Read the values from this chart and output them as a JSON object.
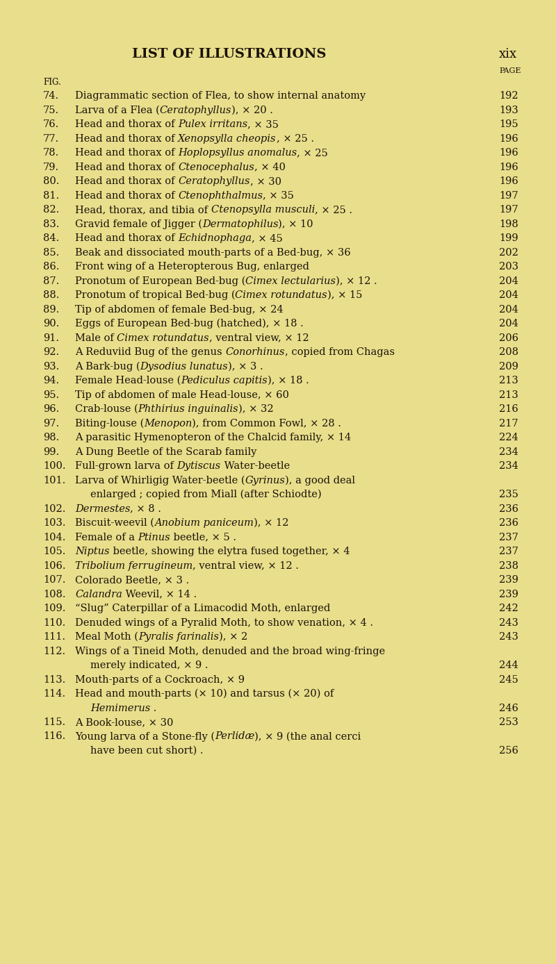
{
  "bg": "#e8de8c",
  "text_color": "#1a1208",
  "title": "LIST OF ILLUSTRATIONS",
  "page_label": "xix",
  "entries": [
    {
      "num": "74.",
      "segments": [
        [
          "n",
          "Diagrammatic section of Flea, to show internal anatomy"
        ]
      ],
      "page": "192",
      "indent": 0
    },
    {
      "num": "75.",
      "segments": [
        [
          "n",
          "Larva of a Flea ("
        ],
        [
          "i",
          "Ceratophyllus"
        ],
        [
          "n",
          "), × 20 ."
        ]
      ],
      "page": "193",
      "indent": 0
    },
    {
      "num": "76.",
      "segments": [
        [
          "n",
          "Head and thorax of "
        ],
        [
          "i",
          "Pulex irritans"
        ],
        [
          "n",
          ", × 35"
        ]
      ],
      "page": "195",
      "indent": 0
    },
    {
      "num": "77.",
      "segments": [
        [
          "n",
          "Head and thorax of "
        ],
        [
          "i",
          "Xenopsylla cheopis"
        ],
        [
          "n",
          ", × 25 ."
        ]
      ],
      "page": "196",
      "indent": 0
    },
    {
      "num": "78.",
      "segments": [
        [
          "n",
          "Head and thorax of "
        ],
        [
          "i",
          "Hoplopsyllus anomalus"
        ],
        [
          "n",
          ", × 25"
        ]
      ],
      "page": "196",
      "indent": 0
    },
    {
      "num": "79.",
      "segments": [
        [
          "n",
          "Head and thorax of "
        ],
        [
          "i",
          "Ctenocephalus"
        ],
        [
          "n",
          ", × 40"
        ]
      ],
      "page": "196",
      "indent": 0
    },
    {
      "num": "80.",
      "segments": [
        [
          "n",
          "Head and thorax of "
        ],
        [
          "i",
          "Ceratophyllus"
        ],
        [
          "n",
          ", × 30"
        ]
      ],
      "page": "196",
      "indent": 0
    },
    {
      "num": "81.",
      "segments": [
        [
          "n",
          "Head and thorax of "
        ],
        [
          "i",
          "Ctenophthalmus"
        ],
        [
          "n",
          ", × 35"
        ]
      ],
      "page": "197",
      "indent": 0
    },
    {
      "num": "82.",
      "segments": [
        [
          "n",
          "Head, thorax, and tibia of "
        ],
        [
          "i",
          "Ctenopsylla musculi"
        ],
        [
          "n",
          ", × 25 ."
        ]
      ],
      "page": "197",
      "indent": 0
    },
    {
      "num": "83.",
      "segments": [
        [
          "n",
          "Gravid female of Jigger ("
        ],
        [
          "i",
          "Dermatophilus"
        ],
        [
          "n",
          "), × 10"
        ]
      ],
      "page": "198",
      "indent": 0
    },
    {
      "num": "84.",
      "segments": [
        [
          "n",
          "Head and thorax of "
        ],
        [
          "i",
          "Echidnophaga"
        ],
        [
          "n",
          ", × 45"
        ]
      ],
      "page": "199",
      "indent": 0
    },
    {
      "num": "85.",
      "segments": [
        [
          "n",
          "Beak and dissociated mouth-parts of a Bed-bug, × 36"
        ]
      ],
      "page": "202",
      "indent": 0
    },
    {
      "num": "86.",
      "segments": [
        [
          "n",
          "Front wing of a Heteropterous Bug, enlarged"
        ]
      ],
      "page": "203",
      "indent": 0
    },
    {
      "num": "87.",
      "segments": [
        [
          "n",
          "Pronotum of European Bed-bug ("
        ],
        [
          "i",
          "Cimex lectularius"
        ],
        [
          "n",
          "), × 12 ."
        ]
      ],
      "page": "204",
      "indent": 0
    },
    {
      "num": "88.",
      "segments": [
        [
          "n",
          "Pronotum of tropical Bed-bug ("
        ],
        [
          "i",
          "Cimex rotundatus"
        ],
        [
          "n",
          "), × 15"
        ]
      ],
      "page": "204",
      "indent": 0
    },
    {
      "num": "89.",
      "segments": [
        [
          "n",
          "Tip of abdomen of female Bed-bug, × 24"
        ]
      ],
      "page": "204",
      "indent": 0
    },
    {
      "num": "90.",
      "segments": [
        [
          "n",
          "Eggs of European Bed-bug (hatched), × 18 ."
        ]
      ],
      "page": "204",
      "indent": 0
    },
    {
      "num": "91.",
      "segments": [
        [
          "n",
          "Male of "
        ],
        [
          "i",
          "Cimex rotundatus"
        ],
        [
          "n",
          ", ventral view, × 12"
        ]
      ],
      "page": "206",
      "indent": 0
    },
    {
      "num": "92.",
      "segments": [
        [
          "n",
          "A Reduviid Bug of the genus "
        ],
        [
          "i",
          "Conorhinus"
        ],
        [
          "n",
          ", copied from Chagas"
        ]
      ],
      "page": "208",
      "indent": 0
    },
    {
      "num": "93.",
      "segments": [
        [
          "n",
          "A Bark-bug ("
        ],
        [
          "i",
          "Dysodius lunatus"
        ],
        [
          "n",
          "), × 3 ."
        ]
      ],
      "page": "209",
      "indent": 0
    },
    {
      "num": "94.",
      "segments": [
        [
          "n",
          "Female Head-louse ("
        ],
        [
          "i",
          "Pediculus capitis"
        ],
        [
          "n",
          "), × 18 ."
        ]
      ],
      "page": "213",
      "indent": 0
    },
    {
      "num": "95.",
      "segments": [
        [
          "n",
          "Tip of abdomen of male Head-louse, × 60"
        ]
      ],
      "page": "213",
      "indent": 0
    },
    {
      "num": "96.",
      "segments": [
        [
          "n",
          "Crab-louse ("
        ],
        [
          "i",
          "Phthirius inguinalis"
        ],
        [
          "n",
          "), × 32"
        ]
      ],
      "page": "216",
      "indent": 0
    },
    {
      "num": "97.",
      "segments": [
        [
          "n",
          "Biting-louse ("
        ],
        [
          "i",
          "Menopon"
        ],
        [
          "n",
          "), from Common Fowl, × 28 ."
        ]
      ],
      "page": "217",
      "indent": 0
    },
    {
      "num": "98.",
      "segments": [
        [
          "n",
          "A parasitic Hymenopteron of the Chalcid family, × 14"
        ]
      ],
      "page": "224",
      "indent": 0
    },
    {
      "num": "99.",
      "segments": [
        [
          "n",
          "A Dung Beetle of the Scarab family"
        ]
      ],
      "page": "234",
      "indent": 0
    },
    {
      "num": "100.",
      "segments": [
        [
          "n",
          "Full-grown larva of "
        ],
        [
          "i",
          "Dytiscus"
        ],
        [
          "n",
          " Water-beetle"
        ]
      ],
      "page": "234",
      "indent": 0
    },
    {
      "num": "101.",
      "segments": [
        [
          "n",
          "Larva of Whirligig Water-beetle ("
        ],
        [
          "i",
          "Gyrinus"
        ],
        [
          "n",
          "), a good deal"
        ]
      ],
      "page": "",
      "indent": 0
    },
    {
      "num": "",
      "segments": [
        [
          "n",
          "enlarged ; copied from Miall (after Schiodte)"
        ]
      ],
      "page": "235",
      "indent": 1
    },
    {
      "num": "102.",
      "segments": [
        [
          "i",
          "Dermestes"
        ],
        [
          "n",
          ", × 8 ."
        ]
      ],
      "page": "236",
      "indent": 0
    },
    {
      "num": "103.",
      "segments": [
        [
          "n",
          "Biscuit-weevil ("
        ],
        [
          "i",
          "Anobium paniceum"
        ],
        [
          "n",
          "), × 12"
        ]
      ],
      "page": "236",
      "indent": 0
    },
    {
      "num": "104.",
      "segments": [
        [
          "n",
          "Female of a "
        ],
        [
          "i",
          "Ptinus"
        ],
        [
          "n",
          " beetle, × 5 ."
        ]
      ],
      "page": "237",
      "indent": 0
    },
    {
      "num": "105.",
      "segments": [
        [
          "i",
          "Niptus"
        ],
        [
          "n",
          " beetle, showing the elytra fused together, × 4"
        ]
      ],
      "page": "237",
      "indent": 0
    },
    {
      "num": "106.",
      "segments": [
        [
          "i",
          "Tribolium ferrugineum"
        ],
        [
          "n",
          ", ventral view, × 12 ."
        ]
      ],
      "page": "238",
      "indent": 0
    },
    {
      "num": "107.",
      "segments": [
        [
          "n",
          "Colorado Beetle, × 3 ."
        ]
      ],
      "page": "239",
      "indent": 0
    },
    {
      "num": "108.",
      "segments": [
        [
          "i",
          "Calandra"
        ],
        [
          "n",
          " Weevil, × 14 ."
        ]
      ],
      "page": "239",
      "indent": 0
    },
    {
      "num": "109.",
      "segments": [
        [
          "n",
          "“Slug” Caterpillar of a Limacodid Moth, enlarged"
        ]
      ],
      "page": "242",
      "indent": 0
    },
    {
      "num": "110.",
      "segments": [
        [
          "n",
          "Denuded wings of a Pyralid Moth, to show venation, × 4 ."
        ]
      ],
      "page": "243",
      "indent": 0
    },
    {
      "num": "111.",
      "segments": [
        [
          "n",
          "Meal Moth ("
        ],
        [
          "i",
          "Pyralis farinalis"
        ],
        [
          "n",
          "), × 2"
        ]
      ],
      "page": "243",
      "indent": 0
    },
    {
      "num": "112.",
      "segments": [
        [
          "n",
          "Wings of a Tineid Moth, denuded and the broad wing-fringe"
        ]
      ],
      "page": "",
      "indent": 0
    },
    {
      "num": "",
      "segments": [
        [
          "n",
          "merely indicated, × 9 ."
        ]
      ],
      "page": "244",
      "indent": 1
    },
    {
      "num": "113.",
      "segments": [
        [
          "n",
          "Mouth-parts of a Cockroach, × 9"
        ]
      ],
      "page": "245",
      "indent": 0
    },
    {
      "num": "114.",
      "segments": [
        [
          "n",
          "Head and mouth-parts (× 10) and tarsus (× 20) of"
        ]
      ],
      "page": "",
      "indent": 0
    },
    {
      "num": "",
      "segments": [
        [
          "i",
          "Hemimerus"
        ],
        [
          "n",
          " ."
        ]
      ],
      "page": "246",
      "indent": 1
    },
    {
      "num": "115.",
      "segments": [
        [
          "n",
          "A Book-louse, × 30"
        ]
      ],
      "page": "253",
      "indent": 0
    },
    {
      "num": "116.",
      "segments": [
        [
          "n",
          "Young larva of a Stone-fly ("
        ],
        [
          "i",
          "Perlidæ"
        ],
        [
          "n",
          "), × 9 (the anal cerci"
        ]
      ],
      "page": "",
      "indent": 0
    },
    {
      "num": "",
      "segments": [
        [
          "n",
          "have been cut short) ."
        ]
      ],
      "page": "256",
      "indent": 1
    }
  ]
}
